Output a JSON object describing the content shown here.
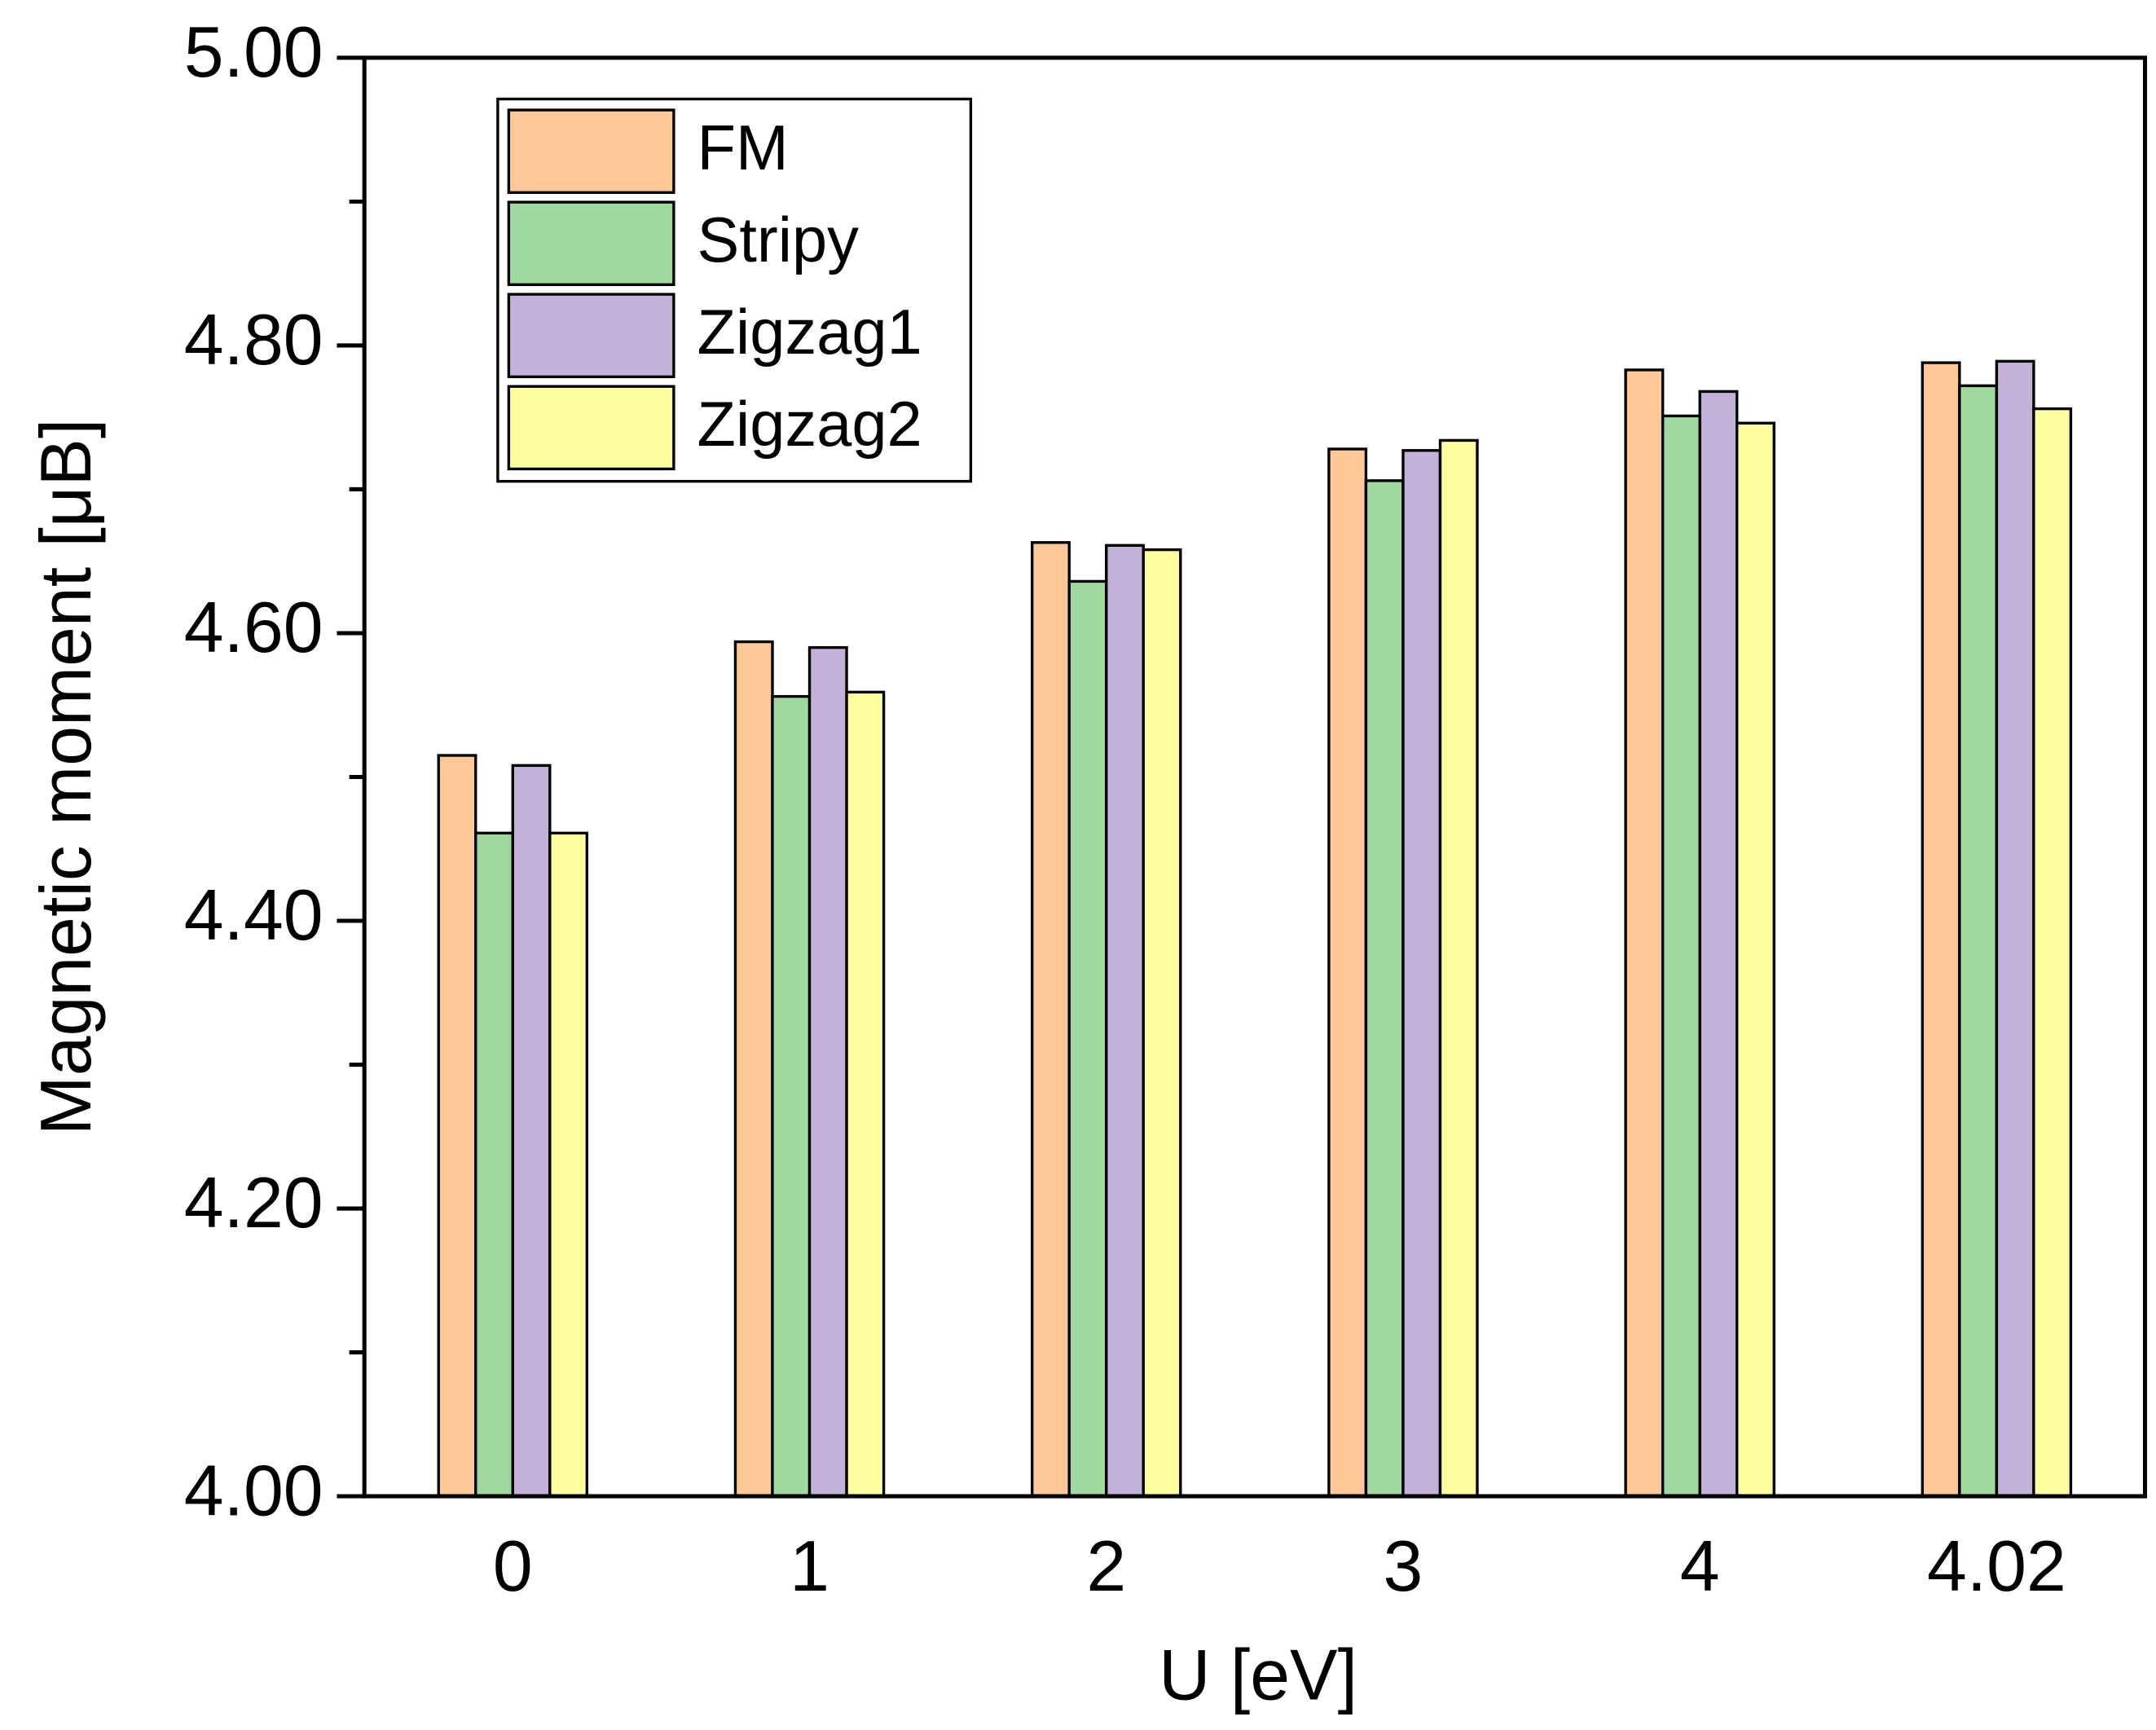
{
  "chart_data": {
    "type": "bar",
    "xlabel": "U [eV]",
    "ylabel": "Magnetic moment [μB]",
    "categories": [
      "0",
      "1",
      "2",
      "3",
      "4",
      "4.02"
    ],
    "series": [
      {
        "name": "FM",
        "color": "#fec897",
        "values": [
          4.515,
          4.594,
          4.663,
          4.728,
          4.783,
          4.788
        ]
      },
      {
        "name": "Stripy",
        "color": "#a0d99e",
        "values": [
          4.461,
          4.556,
          4.636,
          4.706,
          4.751,
          4.772
        ]
      },
      {
        "name": "Zigzag1",
        "color": "#c2b1d8",
        "values": [
          4.508,
          4.59,
          4.661,
          4.727,
          4.768,
          4.789
        ]
      },
      {
        "name": "Zigzag2",
        "color": "#fefe9e",
        "values": [
          4.461,
          4.559,
          4.658,
          4.734,
          4.746,
          4.756
        ]
      }
    ],
    "ylim": [
      4.0,
      5.0
    ],
    "yticks": [
      {
        "value": 4.0,
        "label": "4.00"
      },
      {
        "value": 4.2,
        "label": "4.20"
      },
      {
        "value": 4.4,
        "label": "4.40"
      },
      {
        "value": 4.6,
        "label": "4.60"
      },
      {
        "value": 4.8,
        "label": "4.80"
      },
      {
        "value": 5.0,
        "label": "5.00"
      }
    ],
    "yminor_ticks": [
      4.1,
      4.3,
      4.5,
      4.7,
      4.9
    ],
    "legend": "upper left"
  }
}
